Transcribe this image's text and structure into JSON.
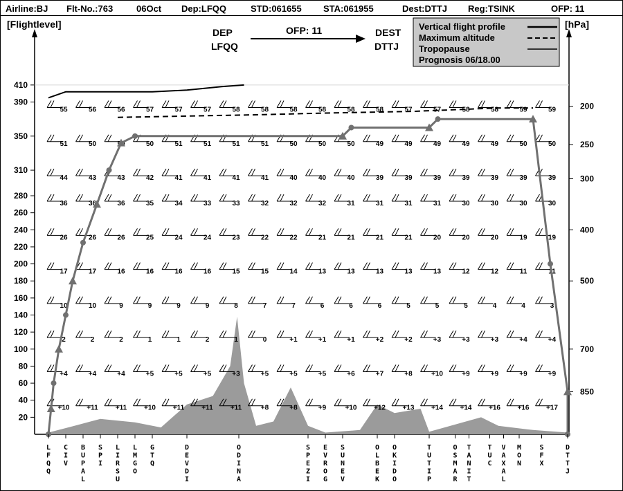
{
  "header": {
    "airline": "Airline:BJ",
    "flight": "Flt-No.:763",
    "date": "06Oct",
    "dep": "Dep:LFQQ",
    "std": "STD:061655",
    "sta": "STA:061955",
    "dest": "Dest:DTTJ",
    "reg": "Reg:TSINK",
    "ofp": "OFP: 11"
  },
  "route": {
    "dep_label": "DEP",
    "dep_code": "LFQQ",
    "ofp": "OFP: 11",
    "dest_label": "DEST",
    "dest_code": "DTTJ"
  },
  "legend": {
    "items": [
      {
        "label": "Vertical flight profile",
        "style": "solid-thick"
      },
      {
        "label": "Maximum altitude",
        "style": "dashed"
      },
      {
        "label": "Tropopause",
        "style": "solid-thin"
      }
    ],
    "prognosis": "Prognosis  06/18.00"
  },
  "chart_data": {
    "type": "line",
    "ylabel": "[Flightlevel]",
    "y2label": "[hPa]",
    "flight_levels": [
      20,
      40,
      60,
      80,
      100,
      120,
      140,
      160,
      180,
      200,
      220,
      240,
      260,
      280,
      310,
      350,
      390,
      410
    ],
    "pressure_ticks": [
      {
        "hpa": "200",
        "fl": 385
      },
      {
        "hpa": "250",
        "fl": 340
      },
      {
        "hpa": "300",
        "fl": 300
      },
      {
        "hpa": "400",
        "fl": 240
      },
      {
        "hpa": "500",
        "fl": 180
      },
      {
        "hpa": "700",
        "fl": 100
      },
      {
        "hpa": "850",
        "fl": 50
      }
    ],
    "waypoints": [
      {
        "name": "LFQQ",
        "x": 0
      },
      {
        "name": "CIV",
        "x": 1
      },
      {
        "name": "BUPAL",
        "x": 2
      },
      {
        "name": "SPI",
        "x": 3
      },
      {
        "name": "LIRSU",
        "x": 4
      },
      {
        "name": "LMGO",
        "x": 5
      },
      {
        "name": "GTQ",
        "x": 6
      },
      {
        "name": "DEVDI",
        "x": 8
      },
      {
        "name": "ODINA",
        "x": 11
      },
      {
        "name": "SPEZI",
        "x": 15
      },
      {
        "name": "EVROG",
        "x": 16
      },
      {
        "name": "SUNEV",
        "x": 17
      },
      {
        "name": "OLBEK",
        "x": 19
      },
      {
        "name": "OKIDO",
        "x": 20
      },
      {
        "name": "TUTIP",
        "x": 22
      },
      {
        "name": "OSMAR",
        "x": 23.5
      },
      {
        "name": "TANIT",
        "x": 24.3
      },
      {
        "name": "TUC",
        "x": 25.5
      },
      {
        "name": "VAXAL",
        "x": 26.3
      },
      {
        "name": "MON",
        "x": 27.2
      },
      {
        "name": "SFX",
        "x": 28.5
      },
      {
        "name": "DTTJ",
        "x": 30
      }
    ],
    "wind_columns": [
      0,
      1,
      2,
      3,
      4,
      5,
      6,
      7,
      8,
      9,
      10,
      11,
      12,
      13,
      14,
      15,
      16,
      17
    ],
    "wind_rows": [
      {
        "fl": 390,
        "values": [
          "55",
          "56",
          "56",
          "57",
          "57",
          "57",
          "58",
          "58",
          "58",
          "58",
          "58",
          "58",
          "57",
          "57",
          "58",
          "58",
          "59",
          "59"
        ]
      },
      {
        "fl": 350,
        "values": [
          "51",
          "50",
          "50",
          "50",
          "51",
          "51",
          "51",
          "51",
          "50",
          "50",
          "50",
          "49",
          "49",
          "49",
          "49",
          "49",
          "50",
          "50"
        ]
      },
      {
        "fl": 310,
        "values": [
          "44",
          "43",
          "43",
          "42",
          "41",
          "41",
          "41",
          "41",
          "40",
          "40",
          "40",
          "39",
          "39",
          "39",
          "39",
          "39",
          "39",
          "39"
        ]
      },
      {
        "fl": 280,
        "values": [
          "36",
          "36",
          "36",
          "35",
          "34",
          "33",
          "33",
          "32",
          "32",
          "32",
          "31",
          "31",
          "31",
          "31",
          "30",
          "30",
          "30",
          "30"
        ]
      },
      {
        "fl": 240,
        "values": [
          "26",
          "26",
          "26",
          "25",
          "24",
          "24",
          "23",
          "22",
          "22",
          "21",
          "21",
          "21",
          "21",
          "20",
          "20",
          "20",
          "19",
          "19"
        ]
      },
      {
        "fl": 200,
        "values": [
          "17",
          "17",
          "16",
          "16",
          "16",
          "16",
          "15",
          "15",
          "14",
          "13",
          "13",
          "13",
          "13",
          "13",
          "12",
          "12",
          "11",
          "11"
        ]
      },
      {
        "fl": 160,
        "values": [
          "10",
          "10",
          "9",
          "9",
          "9",
          "9",
          "8",
          "7",
          "7",
          "6",
          "6",
          "6",
          "5",
          "5",
          "5",
          "4",
          "4",
          "3"
        ]
      },
      {
        "fl": 120,
        "values": [
          "2",
          "2",
          "2",
          "1",
          "1",
          "2",
          "1",
          "0",
          "+1",
          "+1",
          "+1",
          "+2",
          "+2",
          "+3",
          "+3",
          "+3",
          "+4",
          "+4"
        ]
      },
      {
        "fl": 80,
        "values": [
          "+4",
          "+4",
          "+4",
          "+5",
          "+5",
          "+5",
          "+3",
          "+5",
          "+5",
          "+5",
          "+6",
          "+7",
          "+8",
          "+10",
          "+9",
          "+9",
          "+9",
          "+9"
        ]
      },
      {
        "fl": 40,
        "values": [
          "+10",
          "+11",
          "+11",
          "+10",
          "+11",
          "+11",
          "+11",
          "+8",
          "+8",
          "+9",
          "+10",
          "+12",
          "+13",
          "+14",
          "+14",
          "+16",
          "+16",
          "+17"
        ]
      }
    ],
    "flight_profile": [
      {
        "x": 0,
        "fl": 0
      },
      {
        "x": 0.15,
        "fl": 30
      },
      {
        "x": 0.3,
        "fl": 60
      },
      {
        "x": 0.6,
        "fl": 100
      },
      {
        "x": 1.0,
        "fl": 140
      },
      {
        "x": 1.4,
        "fl": 180
      },
      {
        "x": 2.0,
        "fl": 225
      },
      {
        "x": 2.8,
        "fl": 270
      },
      {
        "x": 3.5,
        "fl": 310
      },
      {
        "x": 4.2,
        "fl": 342
      },
      {
        "x": 5.0,
        "fl": 350
      },
      {
        "x": 17.0,
        "fl": 350
      },
      {
        "x": 17.5,
        "fl": 360
      },
      {
        "x": 22.0,
        "fl": 360
      },
      {
        "x": 22.5,
        "fl": 370
      },
      {
        "x": 28.0,
        "fl": 370
      },
      {
        "x": 29.0,
        "fl": 200
      },
      {
        "x": 30.0,
        "fl": 50
      },
      {
        "x": 30.0,
        "fl": 0
      }
    ],
    "maximum_altitude": [
      {
        "x": 4.0,
        "fl": 372
      },
      {
        "x": 12.0,
        "fl": 375
      },
      {
        "x": 16.0,
        "fl": 377
      },
      {
        "x": 21.0,
        "fl": 379
      },
      {
        "x": 26.0,
        "fl": 383
      },
      {
        "x": 28.0,
        "fl": 383
      }
    ],
    "tropopause": [
      {
        "x": 0.0,
        "fl": 395
      },
      {
        "x": 1.0,
        "fl": 402
      },
      {
        "x": 3.0,
        "fl": 402
      },
      {
        "x": 6.0,
        "fl": 402
      },
      {
        "x": 8.0,
        "fl": 404
      },
      {
        "x": 10.0,
        "fl": 408
      },
      {
        "x": 11.3,
        "fl": 410
      }
    ],
    "terrain": [
      {
        "x": 0.0,
        "fl": 2
      },
      {
        "x": 1.5,
        "fl": 10
      },
      {
        "x": 3.0,
        "fl": 18
      },
      {
        "x": 5.0,
        "fl": 14
      },
      {
        "x": 6.5,
        "fl": 8
      },
      {
        "x": 8.0,
        "fl": 35
      },
      {
        "x": 9.5,
        "fl": 45
      },
      {
        "x": 10.5,
        "fl": 80
      },
      {
        "x": 10.9,
        "fl": 138
      },
      {
        "x": 11.3,
        "fl": 60
      },
      {
        "x": 12.0,
        "fl": 10
      },
      {
        "x": 13.0,
        "fl": 15
      },
      {
        "x": 14.0,
        "fl": 55
      },
      {
        "x": 15.0,
        "fl": 10
      },
      {
        "x": 16.0,
        "fl": 2
      },
      {
        "x": 18.0,
        "fl": 5
      },
      {
        "x": 19.0,
        "fl": 35
      },
      {
        "x": 20.0,
        "fl": 25
      },
      {
        "x": 21.5,
        "fl": 30
      },
      {
        "x": 22.0,
        "fl": 3
      },
      {
        "x": 25.0,
        "fl": 20
      },
      {
        "x": 26.0,
        "fl": 10
      },
      {
        "x": 28.0,
        "fl": 5
      },
      {
        "x": 30.0,
        "fl": 2
      }
    ],
    "ylim": [
      0,
      420
    ],
    "xlim": [
      0,
      30
    ],
    "grid": false,
    "legend_position": "top-right"
  }
}
